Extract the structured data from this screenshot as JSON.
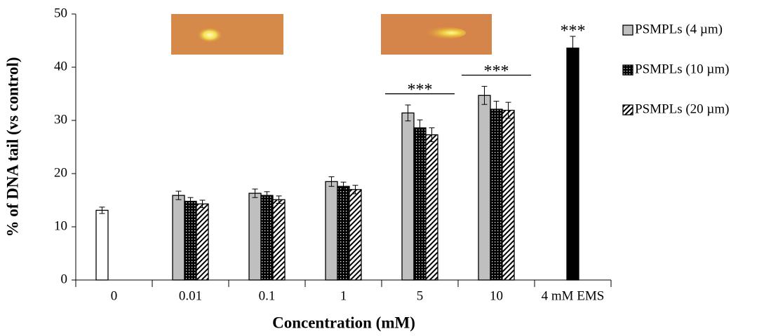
{
  "chart_data": {
    "type": "bar",
    "xlabel": "Concentration (mM)",
    "ylabel": "% of DNA tail (vs control)",
    "categories": [
      "0",
      "0.01",
      "0.1",
      "1",
      "5",
      "10",
      "4 mM EMS"
    ],
    "series": [
      {
        "name": "PSMPLs (4 µm)",
        "color": "#bfbfbf",
        "pattern": "solid",
        "values": [
          null,
          15.9,
          16.3,
          18.5,
          31.4,
          34.7,
          null
        ],
        "errors": [
          null,
          0.8,
          0.8,
          0.9,
          1.5,
          1.7,
          null
        ]
      },
      {
        "name": "PSMPLs (10 µm)",
        "color": "#000000",
        "pattern": "dots",
        "values": [
          null,
          14.8,
          15.9,
          17.6,
          28.6,
          32.1,
          null
        ],
        "errors": [
          null,
          0.7,
          0.7,
          0.8,
          1.5,
          1.5,
          null
        ]
      },
      {
        "name": "PSMPLs (20 µm)",
        "color": "#ffffff",
        "pattern": "hatch",
        "values": [
          null,
          14.3,
          15.1,
          17.0,
          27.3,
          31.9,
          null
        ],
        "errors": [
          null,
          0.7,
          0.7,
          0.8,
          1.3,
          1.5,
          null
        ]
      },
      {
        "color": "#ffffff",
        "pattern": "solid",
        "values": [
          13.1,
          null,
          null,
          null,
          null,
          null,
          null
        ],
        "errors": [
          0.6,
          null,
          null,
          null,
          null,
          null,
          null
        ]
      },
      {
        "color": "#000000",
        "pattern": "solid",
        "values": [
          null,
          null,
          null,
          null,
          null,
          null,
          43.6
        ],
        "errors": [
          null,
          null,
          null,
          null,
          null,
          null,
          2.2
        ]
      }
    ],
    "annotations": [
      {
        "text": "***",
        "category": 4,
        "line": true
      },
      {
        "text": "***",
        "category": 5,
        "line": true
      },
      {
        "text": "***",
        "category": 6,
        "line": false
      }
    ],
    "ylim": [
      0,
      50
    ],
    "yticks": [
      0,
      10,
      20,
      30,
      40,
      50
    ],
    "grid": false,
    "legend": "right"
  }
}
